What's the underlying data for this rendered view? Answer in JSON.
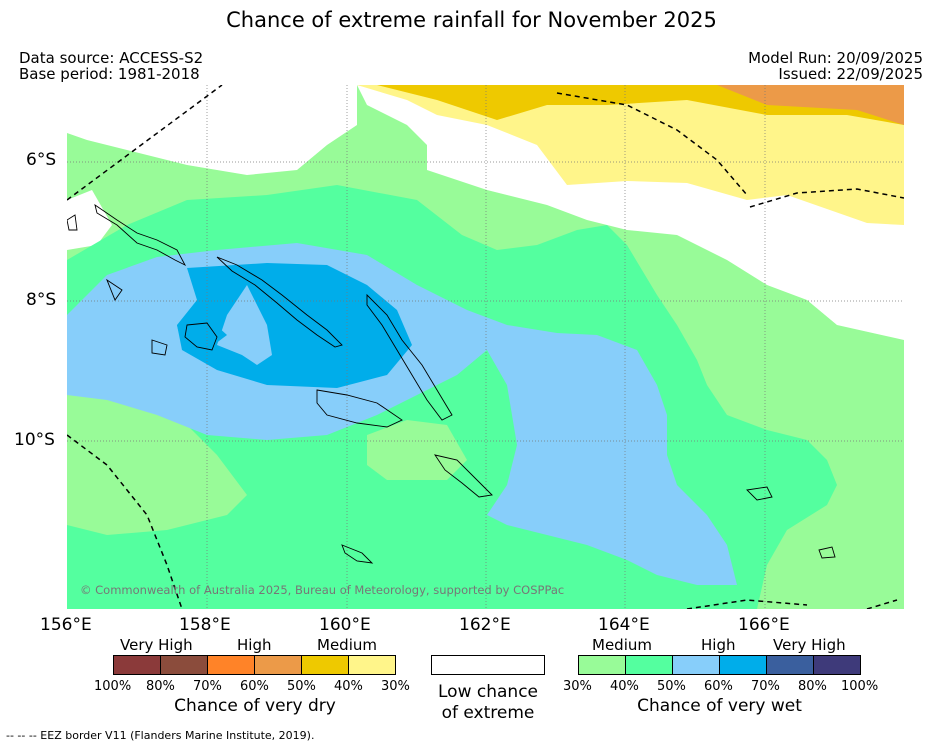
{
  "title": "Chance of extreme rainfall for November 2025",
  "data_source": "Data source: ACCESS-S2",
  "base_period": "Base period: 1981-2018",
  "model_run": "Model Run: 20/09/2025",
  "issued": "Issued: 22/09/2025",
  "lat_labels": [
    "6°S",
    "8°S",
    "10°S"
  ],
  "lon_labels": [
    "156°E",
    "158°E",
    "160°E",
    "162°E",
    "164°E",
    "166°E"
  ],
  "copyright": "© Commonwealth of Australia 2025, Bureau of Meteorology, supported by COSPPac",
  "dry_legend": {
    "levels": [
      "Very High",
      "High",
      "Medium"
    ],
    "ticks": [
      "100%",
      "80%",
      "70%",
      "60%",
      "50%",
      "40%",
      "30%"
    ],
    "colors": [
      "#8b3a3a",
      "#8b4c3c",
      "#ff8328",
      "#ec9a48",
      "#eec900",
      "#fff58a"
    ],
    "caption": "Chance of very dry"
  },
  "low_legend": {
    "caption_1": "Low chance",
    "caption_2": "of extreme",
    "color": "#ffffff"
  },
  "wet_legend": {
    "levels": [
      "Medium",
      "High",
      "Very High"
    ],
    "ticks": [
      "30%",
      "40%",
      "50%",
      "60%",
      "70%",
      "80%",
      "100%"
    ],
    "colors": [
      "#98fb98",
      "#54ff9f",
      "#87cefa",
      "#00adea",
      "#3a5f9e",
      "#3e3a7a"
    ],
    "caption": "Chance of very wet"
  },
  "footer": "--  --  -- EEZ border V11 (Flanders Marine Institute, 2019)."
}
